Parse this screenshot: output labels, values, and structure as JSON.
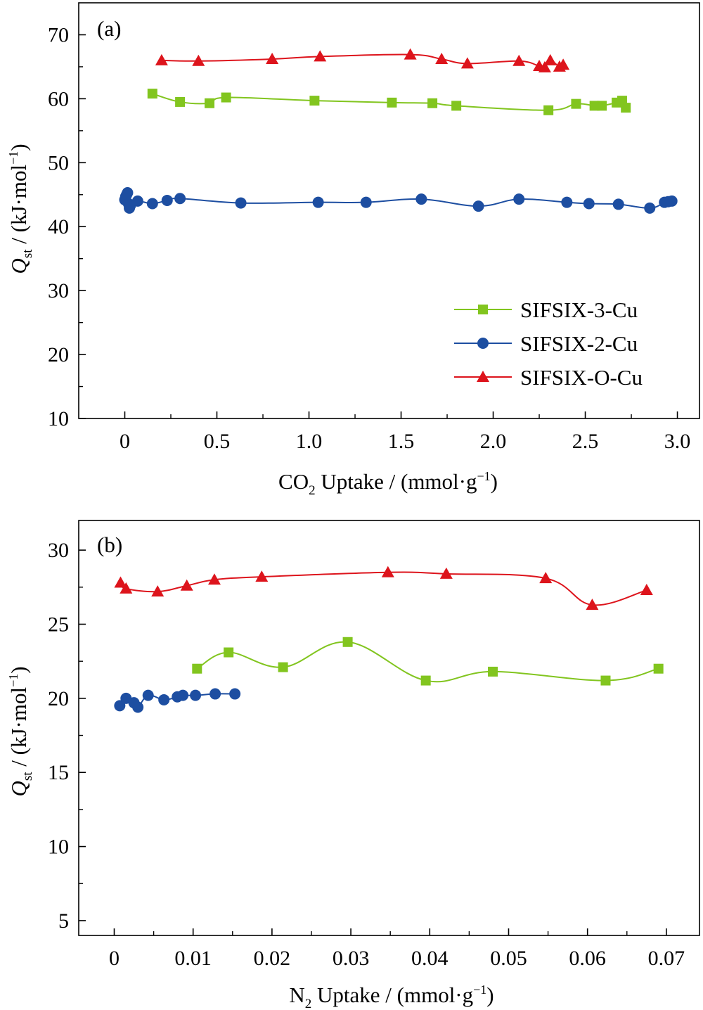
{
  "colors": {
    "green": "#82c51f",
    "blue": "#1d4ea1",
    "red": "#dd141c",
    "axis": "#000000"
  },
  "legend": [
    {
      "name": "SIFSIX-3-Cu",
      "marker": "square",
      "color_key": "green"
    },
    {
      "name": "SIFSIX-2-Cu",
      "marker": "circle",
      "color_key": "blue"
    },
    {
      "name": "SIFSIX-O-Cu",
      "marker": "triangle",
      "color_key": "red"
    }
  ],
  "chart_data": [
    {
      "type": "line",
      "panel": "(a)",
      "xlabel": {
        "pre": "CO",
        "sub": "2",
        "post": " Uptake / (mmol·g",
        "sup": "−1",
        "end": ")"
      },
      "ylabel": {
        "pre": "Q",
        "sub": "st",
        "post": " / (kJ·mol",
        "sup": "−1",
        "end": ")"
      },
      "xlim": [
        -0.25,
        3.12
      ],
      "ylim": [
        10,
        75
      ],
      "xticks": [
        0,
        0.5,
        1.0,
        1.5,
        2.0,
        2.5,
        3.0
      ],
      "xtick_labels": [
        "0",
        "0.5",
        "1.0",
        "1.5",
        "2.0",
        "2.5",
        "3.0"
      ],
      "yticks": [
        10,
        20,
        30,
        40,
        50,
        60,
        70
      ],
      "ytick_labels": [
        "10",
        "20",
        "30",
        "40",
        "50",
        "60",
        "70"
      ],
      "legend_position": "lower-right",
      "grid": false,
      "series": [
        {
          "name": "SIFSIX-3-Cu",
          "marker": "square",
          "color_key": "green",
          "x": [
            0.15,
            0.3,
            0.46,
            0.55,
            1.03,
            1.45,
            1.67,
            1.8,
            2.3,
            2.45,
            2.55,
            2.59,
            2.67,
            2.7,
            2.72
          ],
          "y": [
            60.8,
            59.5,
            59.3,
            60.2,
            59.7,
            59.4,
            59.3,
            58.9,
            58.2,
            59.2,
            58.9,
            58.9,
            59.4,
            59.7,
            58.6
          ]
        },
        {
          "name": "SIFSIX-2-Cu",
          "marker": "circle",
          "color_key": "blue",
          "x": [
            0.0,
            0.005,
            0.01,
            0.015,
            0.02,
            0.025,
            0.03,
            0.07,
            0.15,
            0.23,
            0.3,
            0.63,
            1.05,
            1.31,
            1.61,
            1.92,
            2.14,
            2.4,
            2.52,
            2.68,
            2.85,
            2.93,
            2.95,
            2.97
          ],
          "y": [
            44.2,
            44.7,
            45.0,
            45.3,
            43.6,
            42.9,
            43.3,
            44.0,
            43.6,
            44.1,
            44.4,
            43.7,
            43.8,
            43.8,
            44.3,
            43.2,
            44.3,
            43.8,
            43.6,
            43.5,
            42.9,
            43.8,
            43.9,
            44.0
          ]
        },
        {
          "name": "SIFSIX-O-Cu",
          "marker": "triangle",
          "color_key": "red",
          "x": [
            0.2,
            0.4,
            0.8,
            1.06,
            1.55,
            1.72,
            1.86,
            2.14,
            2.25,
            2.28,
            2.31,
            2.36,
            2.38
          ],
          "y": [
            66.0,
            65.9,
            66.2,
            66.6,
            66.9,
            66.2,
            65.5,
            65.9,
            65.1,
            64.9,
            66.0,
            65.0,
            65.3
          ]
        }
      ]
    },
    {
      "type": "line",
      "panel": "(b)",
      "xlabel": {
        "pre": "N",
        "sub": "2",
        "post": " Uptake / (mmol·g",
        "sup": "−1",
        "end": ")"
      },
      "ylabel": {
        "pre": "Q",
        "sub": "st",
        "post": " / (kJ·mol",
        "sup": "−1",
        "end": ")"
      },
      "xlim": [
        -0.0045,
        0.0742
      ],
      "ylim": [
        4,
        32
      ],
      "xticks": [
        0,
        0.01,
        0.02,
        0.03,
        0.04,
        0.05,
        0.06,
        0.07
      ],
      "xtick_labels": [
        "0",
        "0.01",
        "0.02",
        "0.03",
        "0.04",
        "0.05",
        "0.06",
        "0.07"
      ],
      "yticks": [
        5,
        10,
        15,
        20,
        25,
        30
      ],
      "ytick_labels": [
        "5",
        "10",
        "15",
        "20",
        "25",
        "30"
      ],
      "grid": false,
      "series": [
        {
          "name": "SIFSIX-3-Cu",
          "marker": "square",
          "color_key": "green",
          "x": [
            0.0105,
            0.0145,
            0.0214,
            0.0296,
            0.0395,
            0.048,
            0.0623,
            0.069
          ],
          "y": [
            22.0,
            23.1,
            22.1,
            23.8,
            21.2,
            21.8,
            21.2,
            22.0
          ]
        },
        {
          "name": "SIFSIX-2-Cu",
          "marker": "circle",
          "color_key": "blue",
          "x": [
            0.0007,
            0.0015,
            0.0025,
            0.003,
            0.0043,
            0.0063,
            0.008,
            0.0087,
            0.0103,
            0.0128,
            0.0153
          ],
          "y": [
            19.5,
            20.0,
            19.7,
            19.4,
            20.2,
            19.9,
            20.1,
            20.2,
            20.2,
            20.3,
            20.3
          ]
        },
        {
          "name": "SIFSIX-O-Cu",
          "marker": "triangle",
          "color_key": "red",
          "x": [
            0.0008,
            0.0015,
            0.0055,
            0.0092,
            0.0127,
            0.0187,
            0.0347,
            0.0421,
            0.0547,
            0.0606,
            0.0675
          ],
          "y": [
            27.8,
            27.4,
            27.2,
            27.6,
            28.0,
            28.2,
            28.5,
            28.4,
            28.1,
            26.3,
            27.3
          ]
        }
      ]
    }
  ]
}
